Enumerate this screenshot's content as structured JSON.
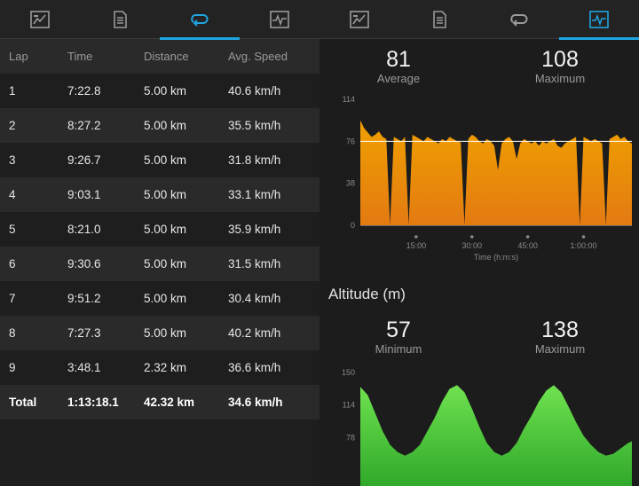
{
  "tabs_left": [
    {
      "icon": "overview-icon",
      "active": false
    },
    {
      "icon": "details-icon",
      "active": false
    },
    {
      "icon": "laps-icon",
      "active": true
    },
    {
      "icon": "charts-icon",
      "active": false
    }
  ],
  "tabs_right": [
    {
      "icon": "overview-icon",
      "active": false
    },
    {
      "icon": "details-icon",
      "active": false
    },
    {
      "icon": "laps-icon",
      "active": false
    },
    {
      "icon": "charts-icon",
      "active": true
    }
  ],
  "laps": {
    "headers": [
      "Lap",
      "Time",
      "Distance",
      "Avg. Speed"
    ],
    "rows": [
      [
        "1",
        "7:22.8",
        "5.00 km",
        "40.6 km/h"
      ],
      [
        "2",
        "8:27.2",
        "5.00 km",
        "35.5 km/h"
      ],
      [
        "3",
        "9:26.7",
        "5.00 km",
        "31.8 km/h"
      ],
      [
        "4",
        "9:03.1",
        "5.00 km",
        "33.1 km/h"
      ],
      [
        "5",
        "8:21.0",
        "5.00 km",
        "35.9 km/h"
      ],
      [
        "6",
        "9:30.6",
        "5.00 km",
        "31.5 km/h"
      ],
      [
        "7",
        "9:51.2",
        "5.00 km",
        "30.4 km/h"
      ],
      [
        "8",
        "7:27.3",
        "5.00 km",
        "40.2 km/h"
      ],
      [
        "9",
        "3:48.1",
        "2.32 km",
        "36.6 km/h"
      ]
    ],
    "total": [
      "Total",
      "1:13:18.1",
      "42.32 km",
      "34.6 km/h"
    ]
  },
  "cadence": {
    "average_value": "81",
    "average_label": "Average",
    "maximum_value": "108",
    "maximum_label": "Maximum"
  },
  "altitude": {
    "title": "Altitude (m)",
    "minimum_value": "57",
    "minimum_label": "Minimum",
    "maximum_value": "138",
    "maximum_label": "Maximum"
  },
  "chart_data": [
    {
      "type": "area",
      "title": "",
      "xlabel": "Time (h:m:s)",
      "ylabel": "",
      "yticks": [
        "0",
        "38",
        "76",
        "114"
      ],
      "xticks": [
        "15:00",
        "30:00",
        "45:00",
        "1:00:00"
      ],
      "ylim": [
        0,
        114
      ],
      "average_line": 76,
      "color_top": "#f0a000",
      "color_bottom": "#e37a12",
      "x_minutes": [
        0,
        1,
        2,
        3,
        4,
        5,
        6,
        7,
        8,
        9,
        10,
        11,
        12,
        13,
        14,
        15,
        16,
        17,
        18,
        19,
        20,
        21,
        22,
        23,
        24,
        25,
        26,
        27,
        28,
        29,
        30,
        31,
        32,
        33,
        34,
        35,
        36,
        37,
        38,
        39,
        40,
        41,
        42,
        43,
        44,
        45,
        46,
        47,
        48,
        49,
        50,
        51,
        52,
        53,
        54,
        55,
        56,
        57,
        58,
        59,
        60,
        61,
        62,
        63,
        64,
        65,
        66,
        67,
        68,
        69,
        70,
        71,
        72,
        73
      ],
      "values": [
        95,
        88,
        84,
        80,
        82,
        85,
        80,
        78,
        0,
        80,
        78,
        76,
        80,
        0,
        82,
        80,
        78,
        76,
        80,
        78,
        76,
        74,
        78,
        76,
        80,
        78,
        76,
        75,
        0,
        78,
        82,
        80,
        76,
        74,
        78,
        76,
        72,
        50,
        74,
        78,
        80,
        76,
        60,
        74,
        78,
        76,
        74,
        76,
        72,
        76,
        74,
        76,
        78,
        72,
        70,
        74,
        76,
        78,
        80,
        0,
        80,
        78,
        76,
        78,
        76,
        74,
        0,
        78,
        80,
        82,
        78,
        80,
        76,
        74
      ]
    },
    {
      "type": "area",
      "title": "Altitude (m)",
      "yticks": [
        "78",
        "114",
        "150"
      ],
      "ylim": [
        42,
        150
      ],
      "color_top": "#6fe24f",
      "color_bottom": "#2fa82a",
      "x_minutes": [
        0,
        2,
        4,
        6,
        8,
        10,
        12,
        14,
        16,
        18,
        20,
        22,
        24,
        26,
        28,
        30,
        32,
        34,
        36,
        38,
        40,
        42,
        44,
        46,
        48,
        50,
        52,
        54,
        56,
        58,
        60,
        62,
        64,
        66,
        68,
        70,
        72,
        73
      ],
      "values": [
        134,
        125,
        105,
        85,
        70,
        62,
        58,
        62,
        70,
        85,
        100,
        118,
        132,
        136,
        128,
        110,
        90,
        72,
        62,
        58,
        62,
        72,
        88,
        102,
        118,
        130,
        136,
        128,
        112,
        95,
        80,
        70,
        62,
        58,
        60,
        66,
        72,
        74
      ]
    }
  ]
}
